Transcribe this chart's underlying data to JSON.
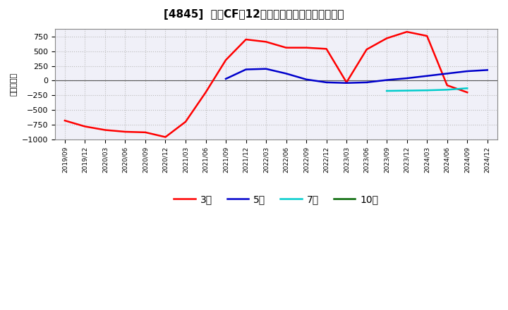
{
  "title": "[4845]  投賄CFの12か月移動合計の平均値の推移",
  "ylabel": "（百万円）",
  "background_color": "#ffffff",
  "plot_bg_color": "#f0f0f8",
  "grid_color": "#aaaaaa",
  "series": {
    "3年": {
      "color": "#ff0000",
      "x": [
        "2019/09",
        "2019/12",
        "2020/03",
        "2020/06",
        "2020/09",
        "2020/12",
        "2021/03",
        "2021/06",
        "2021/09",
        "2021/12",
        "2022/03",
        "2022/06",
        "2022/09",
        "2022/12",
        "2023/03",
        "2023/06",
        "2023/09",
        "2023/12",
        "2024/03",
        "2024/06",
        "2024/09"
      ],
      "y": [
        -680,
        -780,
        -840,
        -870,
        -880,
        -960,
        -700,
        -200,
        350,
        700,
        660,
        560,
        560,
        540,
        -30,
        530,
        720,
        830,
        760,
        -80,
        -200
      ]
    },
    "5年": {
      "color": "#0000cc",
      "x": [
        "2021/09",
        "2021/12",
        "2022/03",
        "2022/06",
        "2022/09",
        "2022/12",
        "2023/03",
        "2023/06",
        "2023/09",
        "2023/12",
        "2024/03",
        "2024/06",
        "2024/09",
        "2024/12"
      ],
      "y": [
        30,
        190,
        200,
        120,
        20,
        -30,
        -40,
        -30,
        10,
        40,
        80,
        120,
        160,
        180
      ]
    },
    "7年": {
      "color": "#00cccc",
      "x": [
        "2023/09",
        "2023/12",
        "2024/03",
        "2024/06",
        "2024/09"
      ],
      "y": [
        -175,
        -170,
        -165,
        -155,
        -130
      ]
    },
    "10年": {
      "color": "#006400",
      "x": [],
      "y": []
    }
  },
  "ylim": [
    -1000,
    875
  ],
  "yticks": [
    -1000,
    -750,
    -500,
    -250,
    0,
    250,
    500,
    750
  ],
  "xticks": [
    "2019/09",
    "2019/12",
    "2020/03",
    "2020/06",
    "2020/09",
    "2020/12",
    "2021/03",
    "2021/06",
    "2021/09",
    "2021/12",
    "2022/03",
    "2022/06",
    "2022/09",
    "2022/12",
    "2023/03",
    "2023/06",
    "2023/09",
    "2023/12",
    "2024/03",
    "2024/06",
    "2024/09",
    "2024/12"
  ],
  "legend_order": [
    "3年",
    "5年",
    "7年",
    "10年"
  ]
}
